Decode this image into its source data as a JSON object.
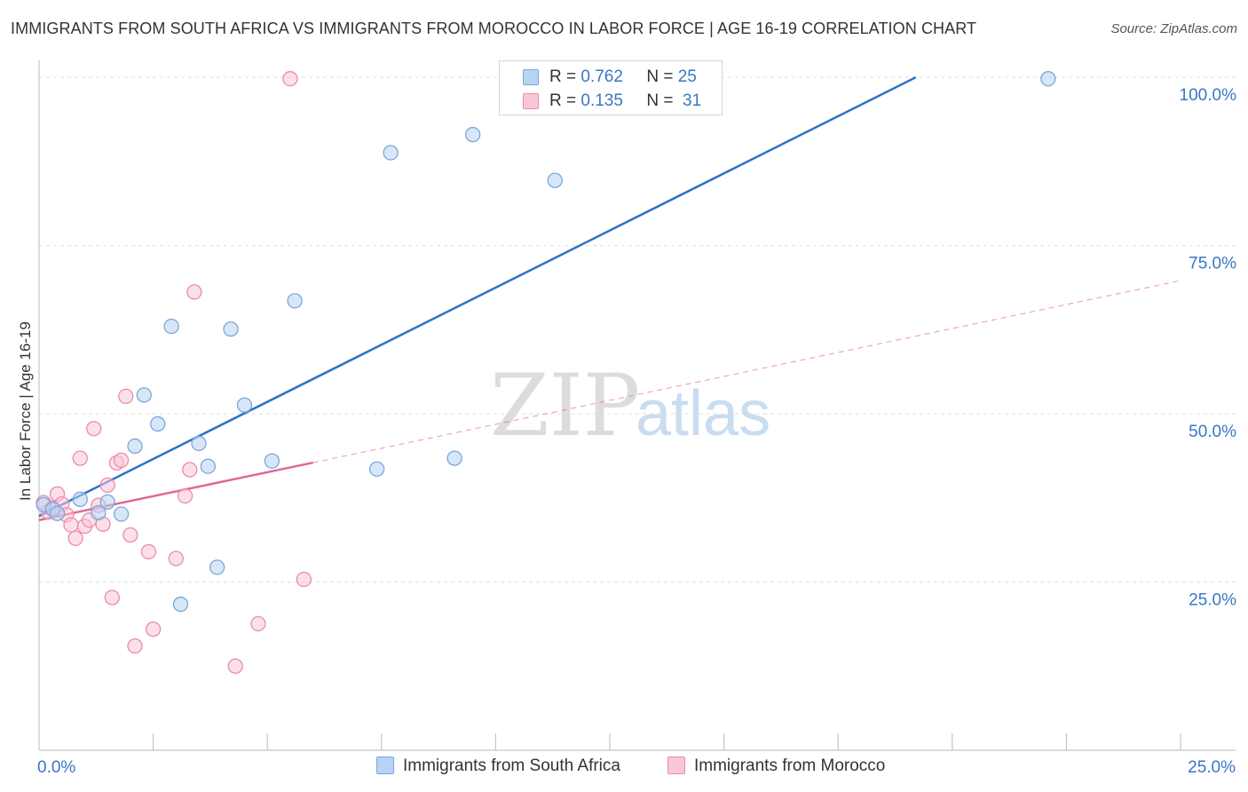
{
  "title": "IMMIGRANTS FROM SOUTH AFRICA VS IMMIGRANTS FROM MOROCCO IN LABOR FORCE | AGE 16-19 CORRELATION CHART",
  "source": "Source: ZipAtlas.com",
  "watermark": {
    "zip": "ZIP",
    "atlas": "atlas"
  },
  "colors": {
    "blue_fill": "#b8d3f3",
    "blue_stroke": "#7aa6dd",
    "blue_line": "#2b72c8",
    "pink_fill": "#f9c7d7",
    "pink_stroke": "#e98bab",
    "pink_line": "#e0679a",
    "tick_text": "#3a76c4",
    "grid": "#dddddd"
  },
  "legend": {
    "rows": [
      {
        "r_label": "R =",
        "r_value": "0.762",
        "n_label": "N =",
        "n_value": "25",
        "series": "blue"
      },
      {
        "r_label": "R =",
        "r_value": "0.135",
        "n_label": "N =",
        "n_value": "31",
        "series": "pink"
      }
    ]
  },
  "bottom_legend": [
    "Immigrants from South Africa",
    "Immigrants from Morocco"
  ],
  "chart_data": {
    "type": "scatter",
    "title": "IMMIGRANTS FROM SOUTH AFRICA VS IMMIGRANTS FROM MOROCCO IN LABOR FORCE | AGE 16-19 CORRELATION CHART",
    "xlabel": "",
    "ylabel": "In Labor Force | Age 16-19",
    "xlim": [
      0,
      25
    ],
    "ylim": [
      0,
      102
    ],
    "x_tick_labels": [
      "0.0%",
      "25.0%"
    ],
    "y_ticks": [
      25,
      50,
      75,
      100
    ],
    "y_tick_labels": [
      "25.0%",
      "50.0%",
      "75.0%",
      "100.0%"
    ],
    "series": [
      {
        "name": "Immigrants from South Africa",
        "color": "blue",
        "r": 0.762,
        "n": 25,
        "trend": {
          "x": [
            0,
            19.2
          ],
          "y": [
            34.8,
            100
          ],
          "solid_until_x": 19.2
        },
        "points": [
          [
            0.1,
            36.5
          ],
          [
            0.3,
            35.8
          ],
          [
            0.4,
            35.2
          ],
          [
            0.9,
            37.3
          ],
          [
            1.5,
            36.9
          ],
          [
            1.3,
            35.3
          ],
          [
            1.8,
            35.1
          ],
          [
            2.1,
            45.2
          ],
          [
            2.3,
            52.8
          ],
          [
            2.6,
            48.5
          ],
          [
            2.9,
            63.0
          ],
          [
            3.1,
            21.7
          ],
          [
            3.5,
            45.6
          ],
          [
            3.7,
            42.2
          ],
          [
            3.9,
            27.2
          ],
          [
            4.2,
            62.6
          ],
          [
            4.5,
            51.3
          ],
          [
            5.1,
            43.0
          ],
          [
            5.6,
            66.8
          ],
          [
            7.4,
            41.8
          ],
          [
            7.7,
            88.8
          ],
          [
            9.1,
            43.4
          ],
          [
            9.5,
            91.5
          ],
          [
            11.3,
            84.7
          ],
          [
            22.1,
            99.8
          ]
        ]
      },
      {
        "name": "Immigrants from Morocco",
        "color": "pink",
        "r": 0.135,
        "n": 31,
        "trend": {
          "x": [
            0,
            25
          ],
          "y": [
            34.2,
            69.8
          ],
          "solid_until_x": 6.0
        },
        "points": [
          [
            0.1,
            36.8
          ],
          [
            0.2,
            35.4
          ],
          [
            0.3,
            36.0
          ],
          [
            0.4,
            38.1
          ],
          [
            0.5,
            36.6
          ],
          [
            0.6,
            35.0
          ],
          [
            0.7,
            33.5
          ],
          [
            0.8,
            31.5
          ],
          [
            0.9,
            43.4
          ],
          [
            1.0,
            33.3
          ],
          [
            1.1,
            34.2
          ],
          [
            1.2,
            47.8
          ],
          [
            1.3,
            36.4
          ],
          [
            1.4,
            33.6
          ],
          [
            1.5,
            39.4
          ],
          [
            1.6,
            22.7
          ],
          [
            1.7,
            42.7
          ],
          [
            1.8,
            43.1
          ],
          [
            1.9,
            52.6
          ],
          [
            2.0,
            32.0
          ],
          [
            2.1,
            15.5
          ],
          [
            2.4,
            29.5
          ],
          [
            2.5,
            18.0
          ],
          [
            3.0,
            28.5
          ],
          [
            3.2,
            37.8
          ],
          [
            3.3,
            41.7
          ],
          [
            3.4,
            68.1
          ],
          [
            4.3,
            12.5
          ],
          [
            4.8,
            18.8
          ],
          [
            5.5,
            99.8
          ],
          [
            5.8,
            25.4
          ]
        ]
      }
    ]
  }
}
